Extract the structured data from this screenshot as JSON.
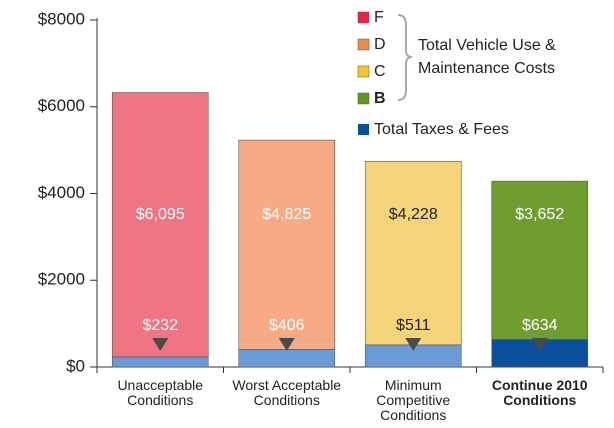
{
  "chart_data": {
    "type": "stacked_bar",
    "categories": [
      "Unacceptable Conditions",
      "Worst Acceptable Conditions",
      "Minimum Competitive Conditions",
      "Continue 2010 Conditions"
    ],
    "bold_category": 3,
    "series": [
      {
        "name": "Total Taxes & Fees",
        "color": "#0b4f9c",
        "colors": [
          "#6b9bd6",
          "#6b9bd6",
          "#6b9bd6",
          "#0b4f9c"
        ],
        "values": [
          232,
          406,
          511,
          634
        ],
        "value_labels": [
          "$232",
          "$406",
          "$511",
          "$634"
        ],
        "label_colors": [
          "#ffffff",
          "#ffffff",
          "#222222",
          "#ffffff"
        ]
      },
      {
        "name": "Total Vehicle Use & Maintenance Costs",
        "colors": [
          "#ef7585",
          "#f6ab86",
          "#f6d47a",
          "#6f9e2f"
        ],
        "values": [
          6095,
          4825,
          4228,
          3652
        ],
        "value_labels": [
          "$6,095",
          "$4,825",
          "$4,228",
          "$3,652"
        ],
        "label_colors": [
          "#ffffff",
          "#ffffff",
          "#222222",
          "#ffffff"
        ]
      }
    ],
    "grades": [
      {
        "label": "F",
        "color": "#e8273f"
      },
      {
        "label": "D",
        "color": "#f08a4b"
      },
      {
        "label": "C",
        "color": "#f5c530"
      },
      {
        "label": "B",
        "color": "#5e9a1e",
        "bold": true
      }
    ],
    "ylim": [
      0,
      8000
    ],
    "yticks": [
      {
        "value": 0,
        "label": "$0"
      },
      {
        "value": 2000,
        "label": "$2000"
      },
      {
        "value": 4000,
        "label": "$4000"
      },
      {
        "value": 6000,
        "label": "$6000"
      },
      {
        "value": 8000,
        "label": "$8000"
      }
    ],
    "grid": false
  }
}
